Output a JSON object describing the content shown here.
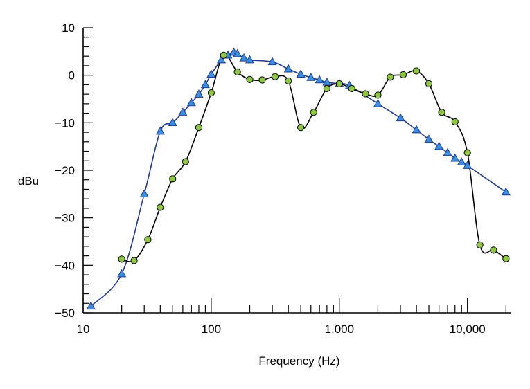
{
  "chart_data": {
    "type": "line",
    "xlabel": "Frequency (Hz)",
    "ylabel": "dBu",
    "x_scale": "log",
    "xlim": [
      10,
      22000
    ],
    "ylim": [
      -50,
      10
    ],
    "grid": false,
    "x_tick_labels": [
      {
        "value": 10,
        "label": "10"
      },
      {
        "value": 100,
        "label": "100"
      },
      {
        "value": 1000,
        "label": "1,000"
      },
      {
        "value": 10000,
        "label": "10,000"
      }
    ],
    "x_minor_ticks": [
      20,
      30,
      40,
      50,
      60,
      70,
      80,
      90,
      200,
      300,
      400,
      500,
      600,
      700,
      800,
      900,
      2000,
      3000,
      4000,
      5000,
      6000,
      7000,
      8000,
      9000,
      20000
    ],
    "y_tick_labels": [
      {
        "value": 10,
        "label": "10"
      },
      {
        "value": 0,
        "label": "0"
      },
      {
        "value": -10,
        "label": "−10"
      },
      {
        "value": -20,
        "label": "−20"
      },
      {
        "value": -30,
        "label": "−30"
      },
      {
        "value": -40,
        "label": "−40"
      },
      {
        "value": -50,
        "label": "−50"
      }
    ],
    "y_minor_step": 2,
    "series": [
      {
        "marker": "triangle",
        "line_color": "#1f3a93",
        "marker_fill": "#3b8fe0",
        "points": [
          [
            11.5,
            -48.6
          ],
          [
            20,
            -41.8
          ],
          [
            30,
            -25
          ],
          [
            40,
            -11.8
          ],
          [
            50,
            -10
          ],
          [
            60,
            -7.8
          ],
          [
            70,
            -5.8
          ],
          [
            80,
            -4
          ],
          [
            90,
            -2
          ],
          [
            100,
            0.2
          ],
          [
            120,
            3.2
          ],
          [
            135,
            4.2
          ],
          [
            150,
            4.8
          ],
          [
            160,
            4.5
          ],
          [
            180,
            3.6
          ],
          [
            200,
            3.2
          ],
          [
            300,
            2.8
          ],
          [
            400,
            1.3
          ],
          [
            500,
            0.2
          ],
          [
            600,
            -0.5
          ],
          [
            700,
            -1
          ],
          [
            800,
            -1.5
          ],
          [
            1000,
            -1.8
          ],
          [
            1200,
            -2.2
          ],
          [
            2000,
            -6
          ],
          [
            3000,
            -9
          ],
          [
            4000,
            -11.5
          ],
          [
            5000,
            -13.5
          ],
          [
            6000,
            -15
          ],
          [
            7000,
            -16.3
          ],
          [
            8000,
            -17.5
          ],
          [
            9000,
            -18.3
          ],
          [
            10000,
            -19
          ],
          [
            20000,
            -24.6
          ]
        ]
      },
      {
        "marker": "circle",
        "line_color": "#000000",
        "marker_fill": "#8dc63f",
        "points": [
          [
            20,
            -38.7
          ],
          [
            25,
            -39
          ],
          [
            32,
            -34.6
          ],
          [
            40,
            -27.8
          ],
          [
            50,
            -21.8
          ],
          [
            63,
            -18.2
          ],
          [
            80,
            -11
          ],
          [
            100,
            -3.7
          ],
          [
            125,
            4.2
          ],
          [
            160,
            0.7
          ],
          [
            200,
            -0.9
          ],
          [
            250,
            -1
          ],
          [
            315,
            -0.3
          ],
          [
            400,
            -1.2
          ],
          [
            500,
            -11
          ],
          [
            630,
            -7.8
          ],
          [
            800,
            -2.8
          ],
          [
            1000,
            -1.8
          ],
          [
            1250,
            -2.8
          ],
          [
            1600,
            -3.9
          ],
          [
            2000,
            -4.2
          ],
          [
            2500,
            -0.4
          ],
          [
            3150,
            0.1
          ],
          [
            4000,
            0.9
          ],
          [
            5000,
            -1.8
          ],
          [
            6300,
            -7.8
          ],
          [
            8000,
            -9.8
          ],
          [
            10000,
            -16.3
          ],
          [
            12500,
            -35.7
          ],
          [
            16000,
            -36.8
          ],
          [
            20000,
            -38.6
          ]
        ]
      }
    ]
  }
}
